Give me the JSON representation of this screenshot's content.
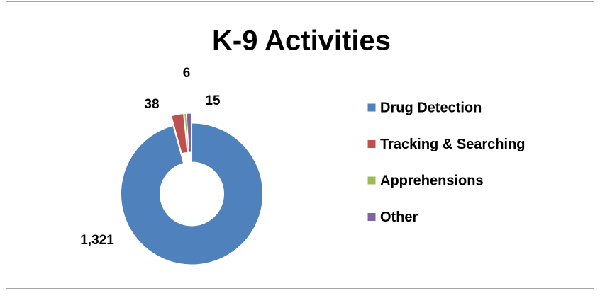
{
  "chart_data": {
    "type": "doughnut",
    "title": "K-9 Activities",
    "categories": [
      "Drug Detection",
      "Tracking & Searching",
      "Apprehensions",
      "Other"
    ],
    "values": [
      1321,
      38,
      6,
      15
    ],
    "value_labels": [
      "1,321",
      "38",
      "6",
      "15"
    ],
    "colors": [
      "#4f81bd",
      "#c0504d",
      "#9bbb59",
      "#8064a2"
    ],
    "legend": "right"
  }
}
